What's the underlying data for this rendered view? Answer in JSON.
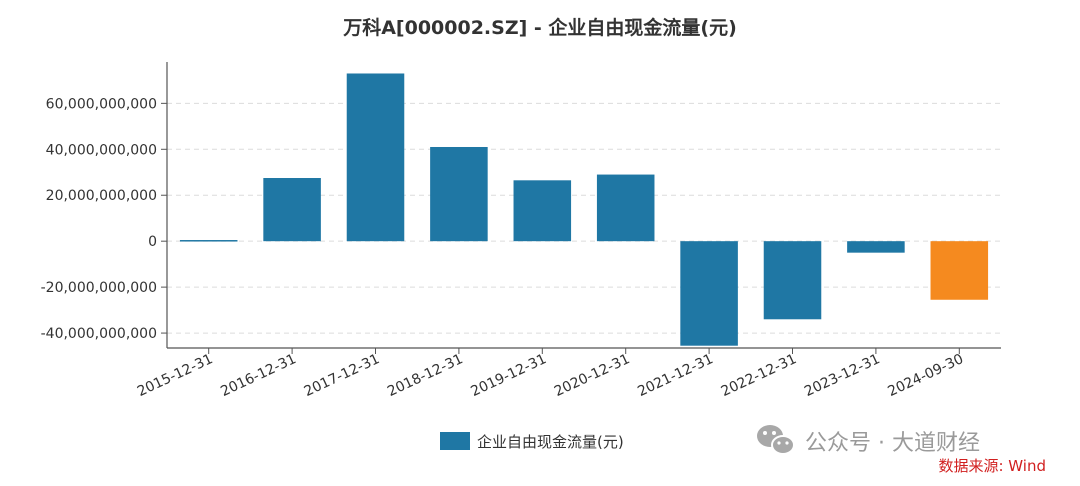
{
  "chart_data": {
    "type": "bar",
    "title": "万科A[000002.SZ] - 企业自由现金流量(元)",
    "categories": [
      "2015-12-31",
      "2016-12-31",
      "2017-12-31",
      "2018-12-31",
      "2019-12-31",
      "2020-12-31",
      "2021-12-31",
      "2022-12-31",
      "2023-12-31",
      "2024-09-30"
    ],
    "series": [
      {
        "name": "企业自由现金流量(元)",
        "values": [
          500000000,
          27500000000,
          73000000000,
          41000000000,
          26500000000,
          29000000000,
          -45500000000,
          -34000000000,
          -5000000000,
          -25500000000
        ],
        "colors": [
          "#1f77a4",
          "#1f77a4",
          "#1f77a4",
          "#1f77a4",
          "#1f77a4",
          "#1f77a4",
          "#1f77a4",
          "#1f77a4",
          "#1f77a4",
          "#f58a1f"
        ]
      }
    ],
    "yticks": [
      "-40,000,000,000",
      "-20,000,000,000",
      "0",
      "20,000,000,000",
      "40,000,000,000",
      "60,000,000,000"
    ],
    "ytick_values": [
      -40000000000,
      -20000000000,
      0,
      20000000000,
      40000000000,
      60000000000
    ],
    "ylim": [
      -46500000000,
      78000000000
    ],
    "grid": true,
    "legend_position": "bottom"
  },
  "watermark": {
    "text": "公众号 · 大道财经",
    "icon": "wechat-icon"
  },
  "source": "数据来源: Wind"
}
